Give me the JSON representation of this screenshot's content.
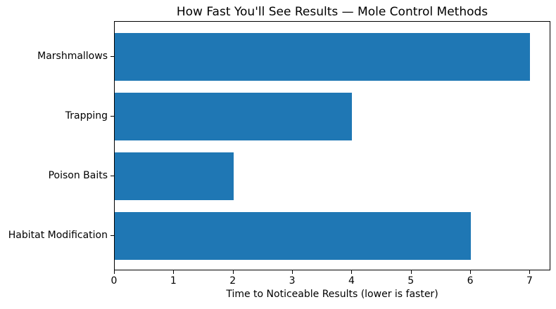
{
  "chart_data": {
    "type": "bar",
    "orientation": "horizontal",
    "title": "How Fast You'll See Results — Mole Control Methods",
    "xlabel": "Time to Noticeable Results (lower is faster)",
    "ylabel": "",
    "categories": [
      "Marshmallows",
      "Trapping",
      "Poison Baits",
      "Habitat Modification"
    ],
    "values": [
      7,
      4,
      2,
      6
    ],
    "xticks": [
      0,
      1,
      2,
      3,
      4,
      5,
      6,
      7
    ],
    "xlim": [
      0,
      7.35
    ],
    "bar_color": "#1f77b4",
    "axis_color": "#000000",
    "background_color": "#ffffff",
    "grid": false,
    "legend": null
  }
}
